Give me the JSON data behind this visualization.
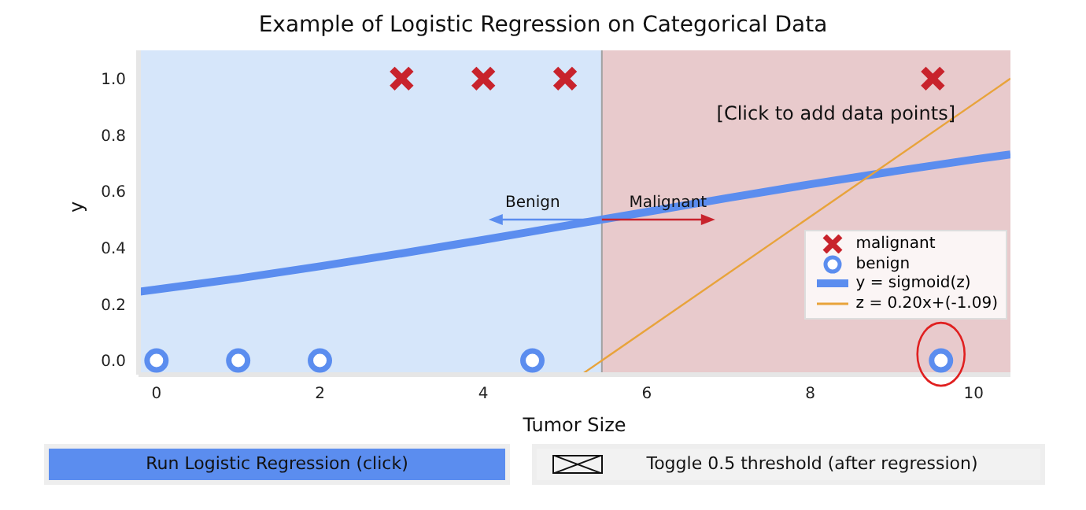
{
  "chart_data": {
    "type": "scatter",
    "title": "Example of Logistic Regression on Categorical Data",
    "xlabel": "Tumor Size",
    "ylabel": "y",
    "xlim": [
      -0.22,
      10.45
    ],
    "ylim": [
      -0.05,
      1.1
    ],
    "xticks": [
      0,
      2,
      4,
      6,
      8,
      10
    ],
    "yticks": [
      {
        "value": 0,
        "label": "0.0"
      },
      {
        "value": 0.2,
        "label": "0.2"
      },
      {
        "value": 0.4,
        "label": "0.4"
      },
      {
        "value": 0.6,
        "label": "0.6"
      },
      {
        "value": 0.8,
        "label": "0.8"
      },
      {
        "value": 1,
        "label": "1.0"
      }
    ],
    "grid": false,
    "legend": "bottom right",
    "series": [
      {
        "name": "malignant",
        "marker": "cross",
        "color": "#c8232c",
        "x": [
          3,
          4,
          5,
          9.5
        ],
        "values": [
          1,
          1,
          1,
          1
        ]
      },
      {
        "name": "benign",
        "marker": "circle",
        "color": "#5b8def",
        "x": [
          0,
          1,
          2,
          4.6,
          9.6
        ],
        "values": [
          0,
          0,
          0,
          0,
          0
        ]
      },
      {
        "name": "y = sigmoid(z)",
        "type": "line",
        "marker": "none",
        "color": "#5b8def",
        "x": [
          -0.22,
          0,
          1,
          2,
          3,
          4,
          5,
          6,
          7,
          8,
          9,
          10,
          10.45
        ],
        "values": [
          0.244,
          0.252,
          0.291,
          0.334,
          0.38,
          0.428,
          0.478,
          0.527,
          0.577,
          0.625,
          0.67,
          0.713,
          0.731
        ]
      },
      {
        "name": "z = 0.20x+(-1.09)",
        "type": "line",
        "marker": "none",
        "color": "#e8a33a",
        "x": [
          5.2,
          10.45
        ],
        "values": [
          -0.05,
          1.0
        ]
      }
    ],
    "bands": [
      {
        "axis": "x",
        "from": -0.22,
        "to": 5.45,
        "color": "#d6e6fa"
      },
      {
        "axis": "x",
        "from": 5.45,
        "to": 10.45,
        "color": "#e8cacc"
      }
    ],
    "ref_lines": [
      {
        "axis": "x",
        "value": 5.45,
        "color": "#a0a0a0"
      }
    ],
    "annotations": [
      "[Click to add data points]",
      {
        "text": "Benign",
        "x": 5.45,
        "y": 0.5
      },
      {
        "text": "Malignant",
        "x": 5.45,
        "y": 0.5
      },
      "Run Logistic Regression (click)",
      "Toggle 0.5 threshold (after regression)"
    ]
  }
}
